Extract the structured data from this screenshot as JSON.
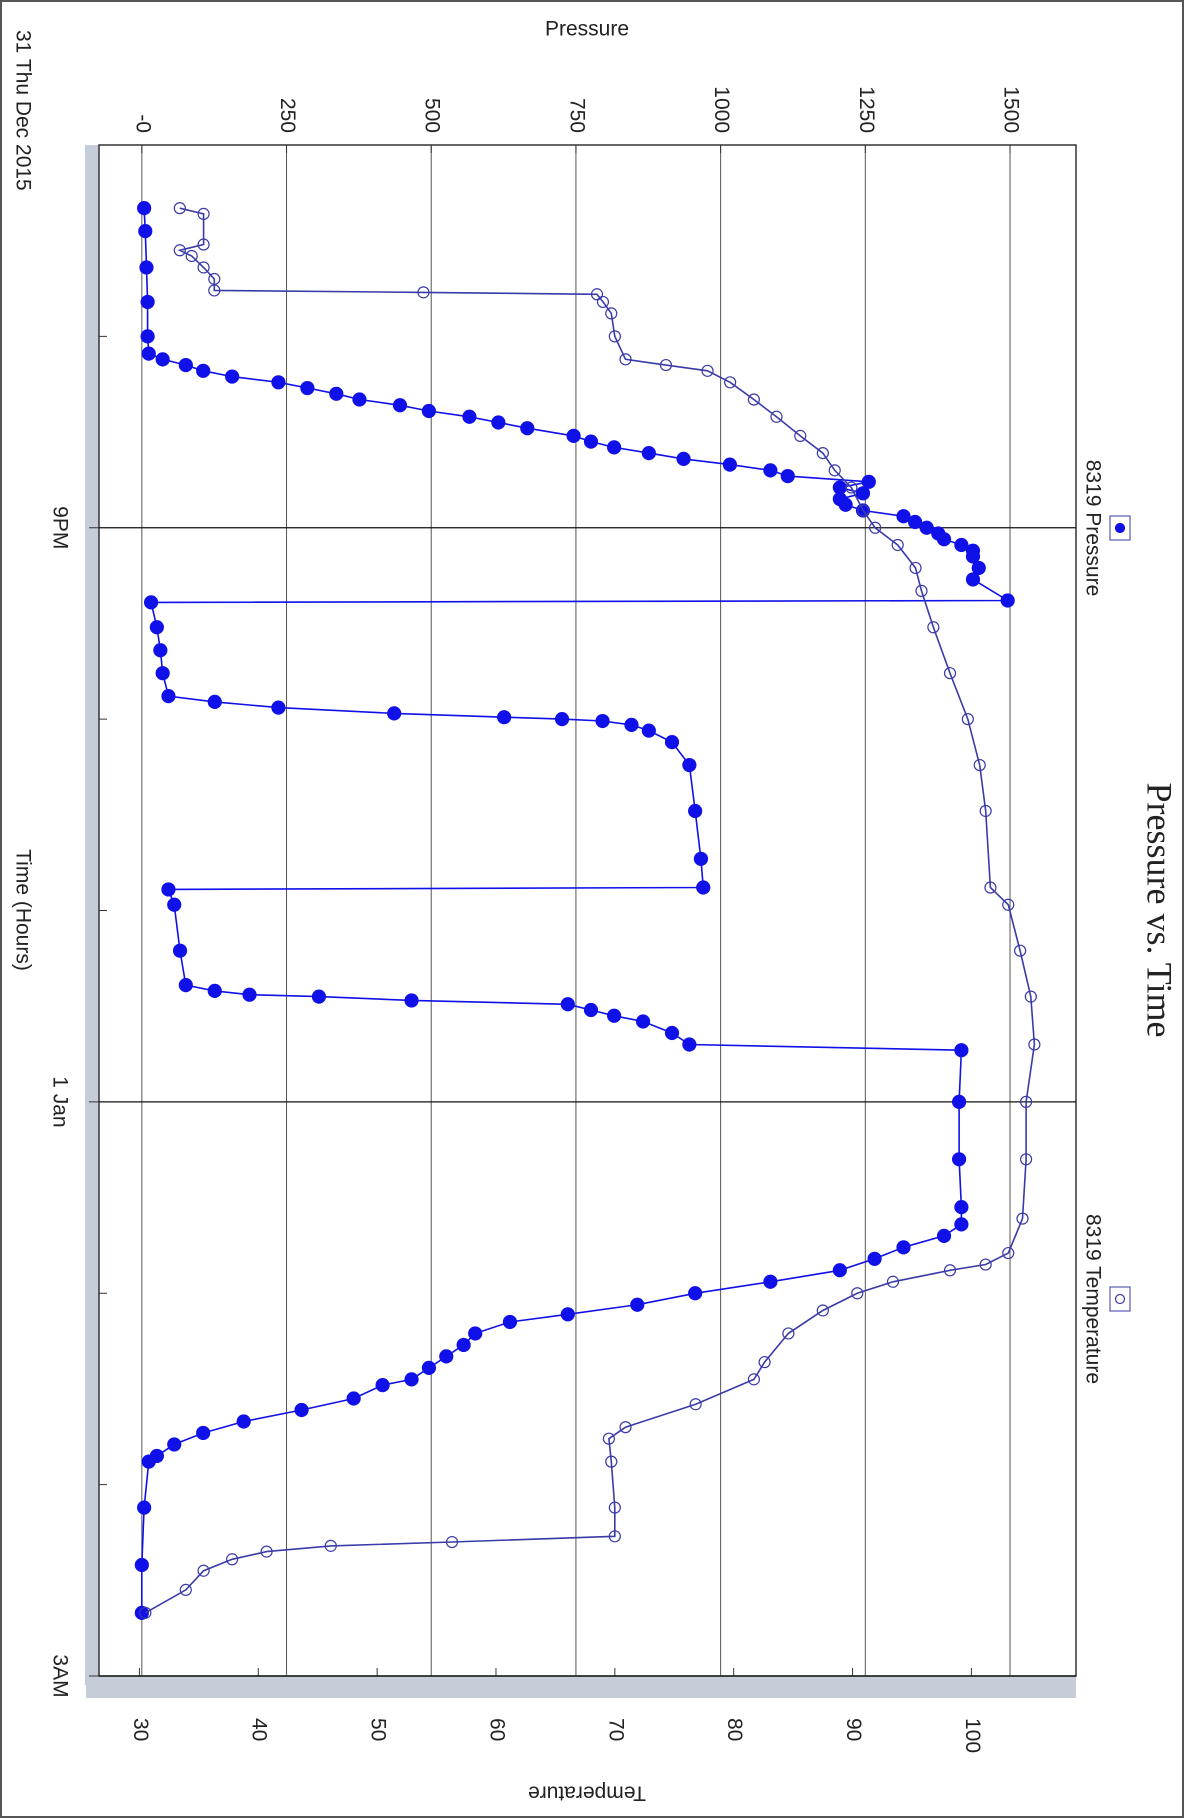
{
  "chart_data": {
    "type": "line",
    "title": "Pressure vs. Time",
    "date_label": "31 Thu Dec 2015",
    "x_label": "Time (Hours)",
    "y_label": "Pressure",
    "y2_label": "Temperature",
    "xlim": [
      19,
      27
    ],
    "xticks": [
      {
        "value": 21,
        "label": "9PM"
      },
      {
        "value": 24,
        "label": "1 Jan"
      },
      {
        "value": 27,
        "label": "3AM"
      }
    ],
    "x_minor_ticks": [
      20,
      22,
      23,
      25,
      26
    ],
    "ylim": [
      -74,
      1614
    ],
    "yticks": [
      {
        "value": 0,
        "label": "-0"
      },
      250,
      500,
      750,
      1000,
      1250,
      1500
    ],
    "y2lim": [
      26.6,
      108.8
    ],
    "y2ticks": [
      30,
      40,
      50,
      60,
      70,
      80,
      90,
      100
    ],
    "grid": true,
    "legend": "top",
    "series": [
      {
        "name": "8319 Pressure",
        "color": "#1010e8",
        "marker": "filled",
        "x": [
          19.33,
          19.45,
          19.64,
          19.82,
          20.0,
          20.09,
          20.12,
          20.15,
          20.18,
          20.21,
          20.24,
          20.27,
          20.3,
          20.33,
          20.36,
          20.39,
          20.42,
          20.45,
          20.48,
          20.52,
          20.55,
          20.58,
          20.61,
          20.64,
          20.67,
          20.7,
          20.73,
          20.76,
          20.79,
          20.82,
          20.85,
          20.88,
          20.91,
          20.94,
          20.97,
          21.0,
          21.03,
          21.06,
          21.09,
          21.12,
          21.15,
          21.21,
          21.27,
          21.38,
          21.39,
          21.52,
          21.64,
          21.76,
          21.88,
          21.91,
          21.94,
          21.97,
          21.99,
          22.0,
          22.01,
          22.03,
          22.06,
          22.12,
          22.24,
          22.48,
          22.73,
          22.88,
          22.89,
          22.97,
          23.21,
          23.39,
          23.42,
          23.44,
          23.45,
          23.47,
          23.49,
          23.52,
          23.55,
          23.58,
          23.64,
          23.7,
          23.73,
          24.0,
          24.3,
          24.55,
          24.64,
          24.7,
          24.76,
          24.82,
          24.88,
          24.94,
          25.0,
          25.06,
          25.11,
          25.15,
          25.21,
          25.27,
          25.33,
          25.39,
          25.45,
          25.48,
          25.55,
          25.61,
          25.67,
          25.73,
          25.79,
          25.85,
          25.88,
          26.12,
          26.42,
          26.67
        ],
        "values": [
          4,
          6,
          8,
          10,
          10,
          12,
          36,
          76,
          106,
          156,
          236,
          286,
          336,
          376,
          446,
          496,
          566,
          616,
          666,
          746,
          776,
          816,
          876,
          936,
          1016,
          1086,
          1116,
          1256,
          1206,
          1246,
          1206,
          1216,
          1246,
          1316,
          1336,
          1356,
          1376,
          1386,
          1416,
          1436,
          1436,
          1446,
          1436,
          1496,
          16,
          26,
          32,
          36,
          46,
          126,
          236,
          436,
          626,
          726,
          796,
          846,
          876,
          916,
          946,
          956,
          966,
          970,
          46,
          56,
          66,
          76,
          126,
          186,
          306,
          466,
          736,
          776,
          816,
          866,
          916,
          946,
          1416,
          1412,
          1412,
          1416,
          1416,
          1386,
          1316,
          1266,
          1206,
          1086,
          956,
          856,
          736,
          636,
          576,
          556,
          526,
          496,
          466,
          416,
          366,
          276,
          176,
          106,
          56,
          26,
          12,
          4,
          0,
          0
        ]
      },
      {
        "name": "8319 Temperature",
        "color": "#3a3aa8",
        "marker": "hollow",
        "axis": "y2",
        "x": [
          19.33,
          19.36,
          19.52,
          19.55,
          19.58,
          19.64,
          19.7,
          19.76,
          19.77,
          19.78,
          19.82,
          19.88,
          20.0,
          20.12,
          20.15,
          20.18,
          20.24,
          20.33,
          20.42,
          20.52,
          20.61,
          20.7,
          20.79,
          20.91,
          21.0,
          21.09,
          21.21,
          21.33,
          21.52,
          21.76,
          22.0,
          22.24,
          22.48,
          22.88,
          22.97,
          23.21,
          23.45,
          23.7,
          24.0,
          24.3,
          24.61,
          24.79,
          24.85,
          24.88,
          24.94,
          25.0,
          25.09,
          25.21,
          25.36,
          25.45,
          25.58,
          25.7,
          25.76,
          25.88,
          26.12,
          26.27,
          26.3,
          26.32,
          26.35,
          26.39,
          26.45,
          26.55,
          26.67
        ],
        "values": [
          33.4,
          35.4,
          35.4,
          33.4,
          34.4,
          35.4,
          36.3,
          36.3,
          53.9,
          68.5,
          69.0,
          69.7,
          70.0,
          70.9,
          74.3,
          77.8,
          79.7,
          81.7,
          83.6,
          85.6,
          87.5,
          88.5,
          89.9,
          90.9,
          91.9,
          93.8,
          95.3,
          95.8,
          96.8,
          98.2,
          99.7,
          100.7,
          101.2,
          101.6,
          103.1,
          104.1,
          105.0,
          105.3,
          104.6,
          104.6,
          104.3,
          103.1,
          101.2,
          98.2,
          93.4,
          90.4,
          87.5,
          84.6,
          82.6,
          81.7,
          76.8,
          70.9,
          69.5,
          69.7,
          70.0,
          70.0,
          56.3,
          46.1,
          40.7,
          37.8,
          35.4,
          33.9,
          30.5
        ]
      }
    ]
  }
}
